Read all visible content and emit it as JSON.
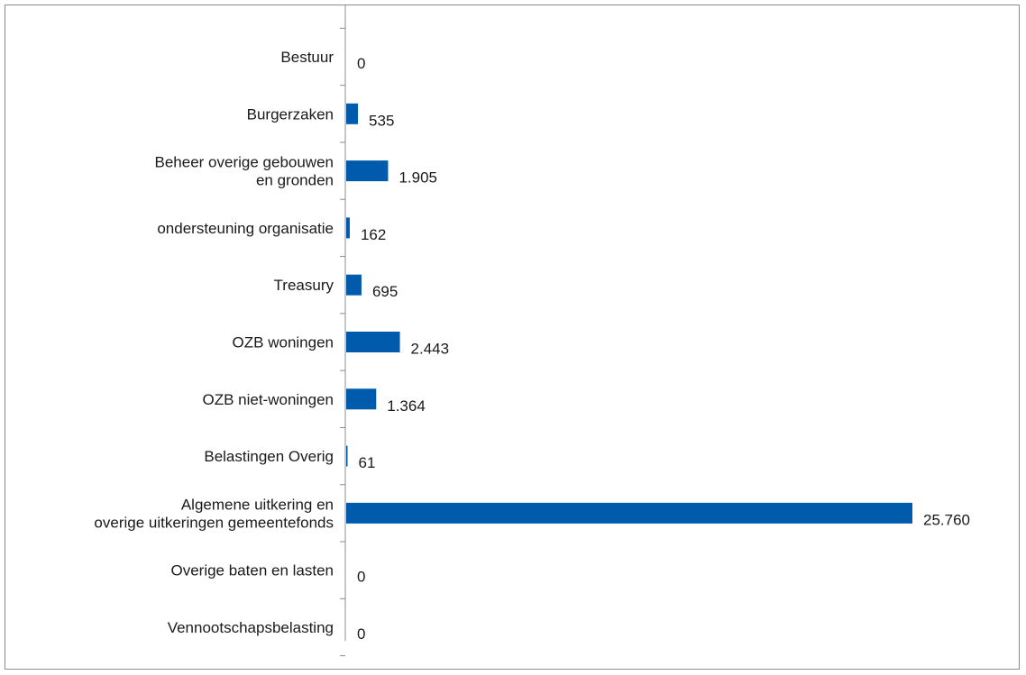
{
  "chart_data": {
    "type": "bar",
    "orientation": "horizontal",
    "categories": [
      [
        "Bestuur"
      ],
      [
        "Burgerzaken"
      ],
      [
        "Beheer overige gebouwen",
        "en gronden"
      ],
      [
        "ondersteuning organisatie"
      ],
      [
        "Treasury"
      ],
      [
        "OZB woningen"
      ],
      [
        "OZB niet-woningen"
      ],
      [
        "Belastingen Overig"
      ],
      [
        "Algemene uitkering en",
        "overige uitkeringen gemeentefonds"
      ],
      [
        "Overige baten en lasten"
      ],
      [
        "Vennootschapsbelasting"
      ]
    ],
    "values": [
      0,
      535,
      1905,
      162,
      695,
      2443,
      1364,
      61,
      25760,
      0,
      0
    ],
    "value_labels": [
      "0",
      "535",
      "1.905",
      "162",
      "695",
      "2.443",
      "1.364",
      "61",
      "25.760",
      "0",
      "0"
    ],
    "title": "",
    "xlabel": "",
    "ylabel": "",
    "xlim": [
      0,
      26000
    ],
    "grid": false,
    "legend": "none",
    "bar_color": "#005BAC",
    "axis_color": "#8c8c8c",
    "text_color": "#1a1a1a"
  }
}
